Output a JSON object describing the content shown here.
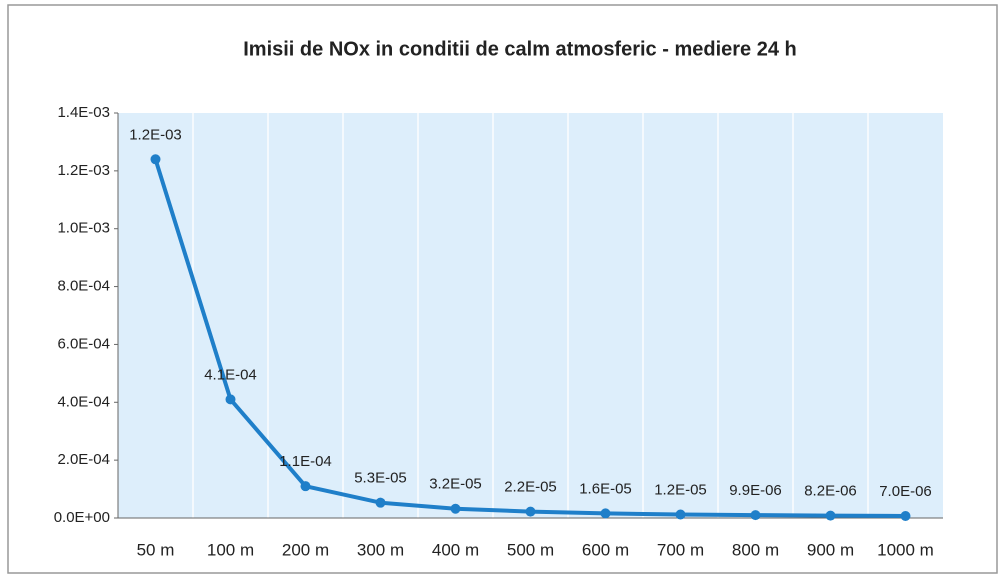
{
  "chart_data": {
    "type": "line",
    "title": "Imisii de NOx  in conditii de calm atmosferic - mediere 24 h",
    "categories": [
      "50 m",
      "100 m",
      "200 m",
      "300 m",
      "400 m",
      "500 m",
      "600 m",
      "700 m",
      "800 m",
      "900 m",
      "1000 m"
    ],
    "series": [
      {
        "name": "NOx",
        "color": "#1f7fc9",
        "values": [
          0.00124,
          0.00041,
          0.00011,
          5.3e-05,
          3.2e-05,
          2.2e-05,
          1.6e-05,
          1.2e-05,
          9.9e-06,
          8.2e-06,
          7e-06
        ],
        "value_labels": [
          "1.2E-03",
          "4.1E-04",
          "1.1E-04",
          "5.3E-05",
          "3.2E-05",
          "2.2E-05",
          "1.6E-05",
          "1.2E-05",
          "9.9E-06",
          "8.2E-06",
          "7.0E-06"
        ]
      }
    ],
    "ylim": [
      0,
      0.0014
    ],
    "yticks": [
      {
        "value": 0,
        "label": "0.0E+00"
      },
      {
        "value": 0.0002,
        "label": "2.0E-04"
      },
      {
        "value": 0.0004,
        "label": "4.0E-04"
      },
      {
        "value": 0.0006,
        "label": "6.0E-04"
      },
      {
        "value": 0.0008,
        "label": "8.0E-04"
      },
      {
        "value": 0.001,
        "label": "1.0E-03"
      },
      {
        "value": 0.0012,
        "label": "1.2E-03"
      },
      {
        "value": 0.0014,
        "label": "1.4E-03"
      }
    ],
    "grid": true
  }
}
